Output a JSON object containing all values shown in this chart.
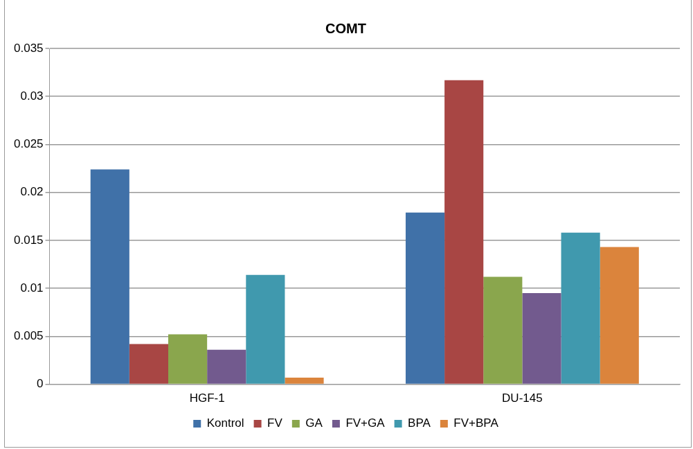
{
  "chart_data": {
    "type": "bar",
    "title": "COMT",
    "categories": [
      "HGF-1",
      "DU-145"
    ],
    "series": [
      {
        "name": "Kontrol",
        "color": "#4071a8",
        "values": [
          0.0224,
          0.0179
        ]
      },
      {
        "name": "FV",
        "color": "#a84644",
        "values": [
          0.0042,
          0.0317
        ]
      },
      {
        "name": "GA",
        "color": "#8aa64d",
        "values": [
          0.0052,
          0.0112
        ]
      },
      {
        "name": "FV+GA",
        "color": "#725a8e",
        "values": [
          0.0036,
          0.0095
        ]
      },
      {
        "name": "BPA",
        "color": "#4099ae",
        "values": [
          0.0114,
          0.0158
        ]
      },
      {
        "name": "FV+BPA",
        "color": "#db843c",
        "values": [
          0.0007,
          0.0143
        ]
      }
    ],
    "ylim": [
      0,
      0.035
    ],
    "yticks": [
      0,
      0.005,
      0.01,
      0.015,
      0.02,
      0.025,
      0.03,
      0.035
    ],
    "grid": "y",
    "legend": "bottom"
  }
}
